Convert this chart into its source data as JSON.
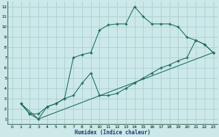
{
  "xlabel": "Humidex (Indice chaleur)",
  "bg_color": "#cce8e8",
  "line_color": "#1a6b5a",
  "grid_color": "#b0d4d4",
  "xlim": [
    -0.5,
    23.5
  ],
  "ylim": [
    0.5,
    12.5
  ],
  "xticks": [
    0,
    1,
    2,
    3,
    4,
    5,
    6,
    7,
    8,
    9,
    10,
    11,
    12,
    13,
    14,
    15,
    16,
    17,
    18,
    19,
    20,
    21,
    22,
    23
  ],
  "yticks": [
    1,
    2,
    3,
    4,
    5,
    6,
    7,
    8,
    9,
    10,
    11,
    12
  ],
  "line1_x": [
    1,
    2,
    3,
    4,
    5,
    6,
    7,
    8,
    9,
    10,
    11,
    12,
    13,
    14,
    15,
    16,
    17,
    18,
    19,
    20,
    21,
    22,
    23
  ],
  "line1_y": [
    2.5,
    1.5,
    1.0,
    2.2,
    2.5,
    3.0,
    7.0,
    7.3,
    7.5,
    9.7,
    10.2,
    10.3,
    10.3,
    12.0,
    11.0,
    10.3,
    10.3,
    10.3,
    10.0,
    9.0,
    8.7,
    8.3,
    7.5
  ],
  "line2_x": [
    1,
    2,
    3,
    4,
    5,
    6,
    7,
    8,
    9,
    10,
    11,
    12,
    13,
    14,
    15,
    16,
    17,
    18,
    19,
    20,
    21,
    22,
    23
  ],
  "line2_y": [
    2.5,
    1.5,
    1.5,
    2.2,
    2.5,
    3.0,
    3.3,
    4.5,
    5.5,
    3.3,
    3.3,
    3.5,
    4.0,
    4.5,
    5.0,
    5.5,
    6.0,
    6.3,
    6.7,
    7.0,
    8.7,
    8.3,
    7.5
  ],
  "line3_x": [
    1,
    3,
    23
  ],
  "line3_y": [
    2.5,
    1.0,
    7.5
  ]
}
